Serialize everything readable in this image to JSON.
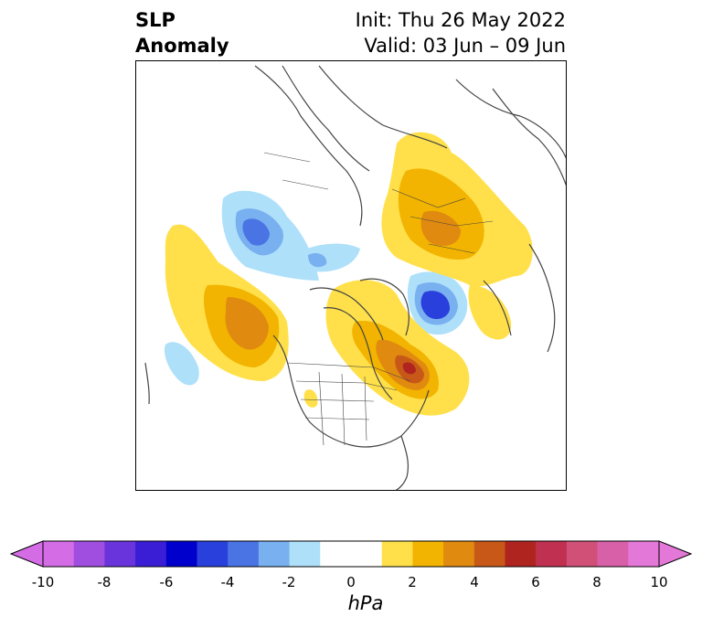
{
  "title": {
    "left_line1": "SLP",
    "left_line2": "Anomaly",
    "init": "Init: Thu 26 May 2022",
    "valid": "Valid: 03 Jun – 09 Jun"
  },
  "colorbar": {
    "unit": "hPa",
    "ticks": [
      "-10",
      "-8",
      "-6",
      "-4",
      "-2",
      "0",
      "2",
      "4",
      "6",
      "8",
      "10"
    ],
    "colors": [
      "#d46ce6",
      "#a04ee0",
      "#6a34dd",
      "#3a1ed6",
      "#0000cc",
      "#2a40dc",
      "#4a74e4",
      "#78b0f0",
      "#aee0fa",
      "#ffffff",
      "#ffffff",
      "#ffe04a",
      "#f2b400",
      "#e08a10",
      "#c85818",
      "#b02420",
      "#c03050",
      "#d05078",
      "#d860a8",
      "#e478d8"
    ]
  },
  "map": {
    "projection": "north-polar-stereographic",
    "region": "Northern Hemisphere / North America",
    "features": [
      "positive anomaly over Hudson Bay / Quebec",
      "positive anomaly over Siberia",
      "positive anomaly over North Pacific",
      "negative anomaly over Norwegian Sea",
      "negative anomaly over Arctic Asia"
    ]
  }
}
